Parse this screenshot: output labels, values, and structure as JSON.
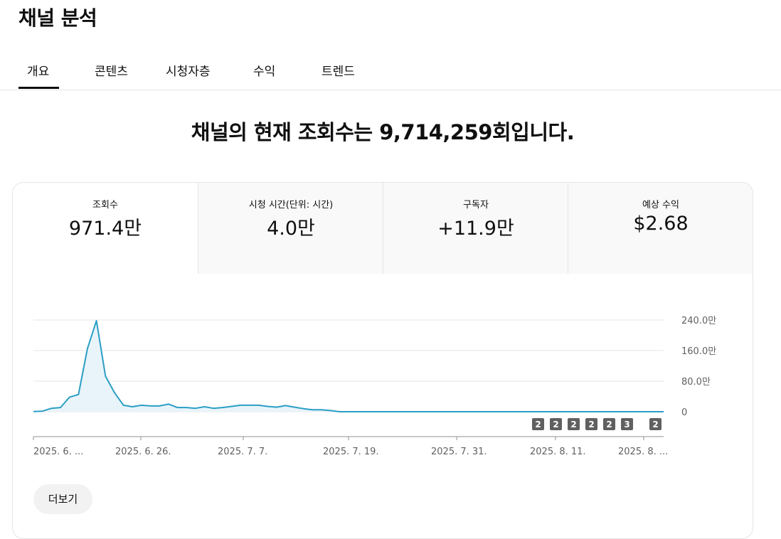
{
  "page": {
    "title": "채널 분석"
  },
  "tabs": [
    {
      "label": "개요",
      "active": true
    },
    {
      "label": "콘텐츠",
      "active": false
    },
    {
      "label": "시청자층",
      "active": false
    },
    {
      "label": "수익",
      "active": false
    },
    {
      "label": "트렌드",
      "active": false
    }
  ],
  "headline": "채널의 현재 조회수는 9,714,259회입니다.",
  "metrics": [
    {
      "label": "조회수",
      "value": "971.4만",
      "active": true
    },
    {
      "label": "시청 시간(단위: 시간)",
      "value": "4.0만",
      "active": false
    },
    {
      "label": "구독자",
      "value": "+11.9만",
      "active": false
    },
    {
      "label": "예상 수익",
      "value": "$2.68",
      "active": false
    }
  ],
  "colors": {
    "line": "#2a9ec5",
    "fill": "#e8f4fa",
    "badge": "#606060",
    "grid": "#e5e5e5"
  },
  "more_button": "더보기",
  "chart_data": {
    "type": "area",
    "y_tick_labels": [
      "240.0만",
      "160.0만",
      "80.0만",
      "0"
    ],
    "y_ticks": [
      240,
      160,
      80,
      0
    ],
    "ylim": [
      0,
      240
    ],
    "x_tick_labels": [
      "2025. 6. ...",
      "2025. 6. 26.",
      "2025. 7. 7.",
      "2025. 7. 19.",
      "2025. 7. 31.",
      "2025. 8. 11.",
      "2025. 8. ..."
    ],
    "values": [
      0.5,
      1.5,
      9,
      11,
      38,
      45,
      165,
      238,
      93,
      50,
      17,
      13,
      17,
      15,
      15,
      20,
      11,
      11,
      9,
      13,
      9,
      11,
      14,
      17,
      17,
      17,
      14,
      12,
      16,
      12,
      8,
      5,
      5,
      3,
      0,
      0,
      0,
      0,
      0,
      0,
      0,
      0,
      0,
      0,
      0,
      0,
      0,
      0,
      0,
      0,
      0,
      0,
      0,
      0,
      0,
      0,
      0,
      0,
      0,
      0,
      0,
      0,
      0,
      0,
      0,
      0,
      0,
      0,
      0,
      0,
      0
    ],
    "annotations": [
      "2",
      "2",
      "2",
      "2",
      "2",
      "3",
      "2"
    ],
    "grid": true
  }
}
